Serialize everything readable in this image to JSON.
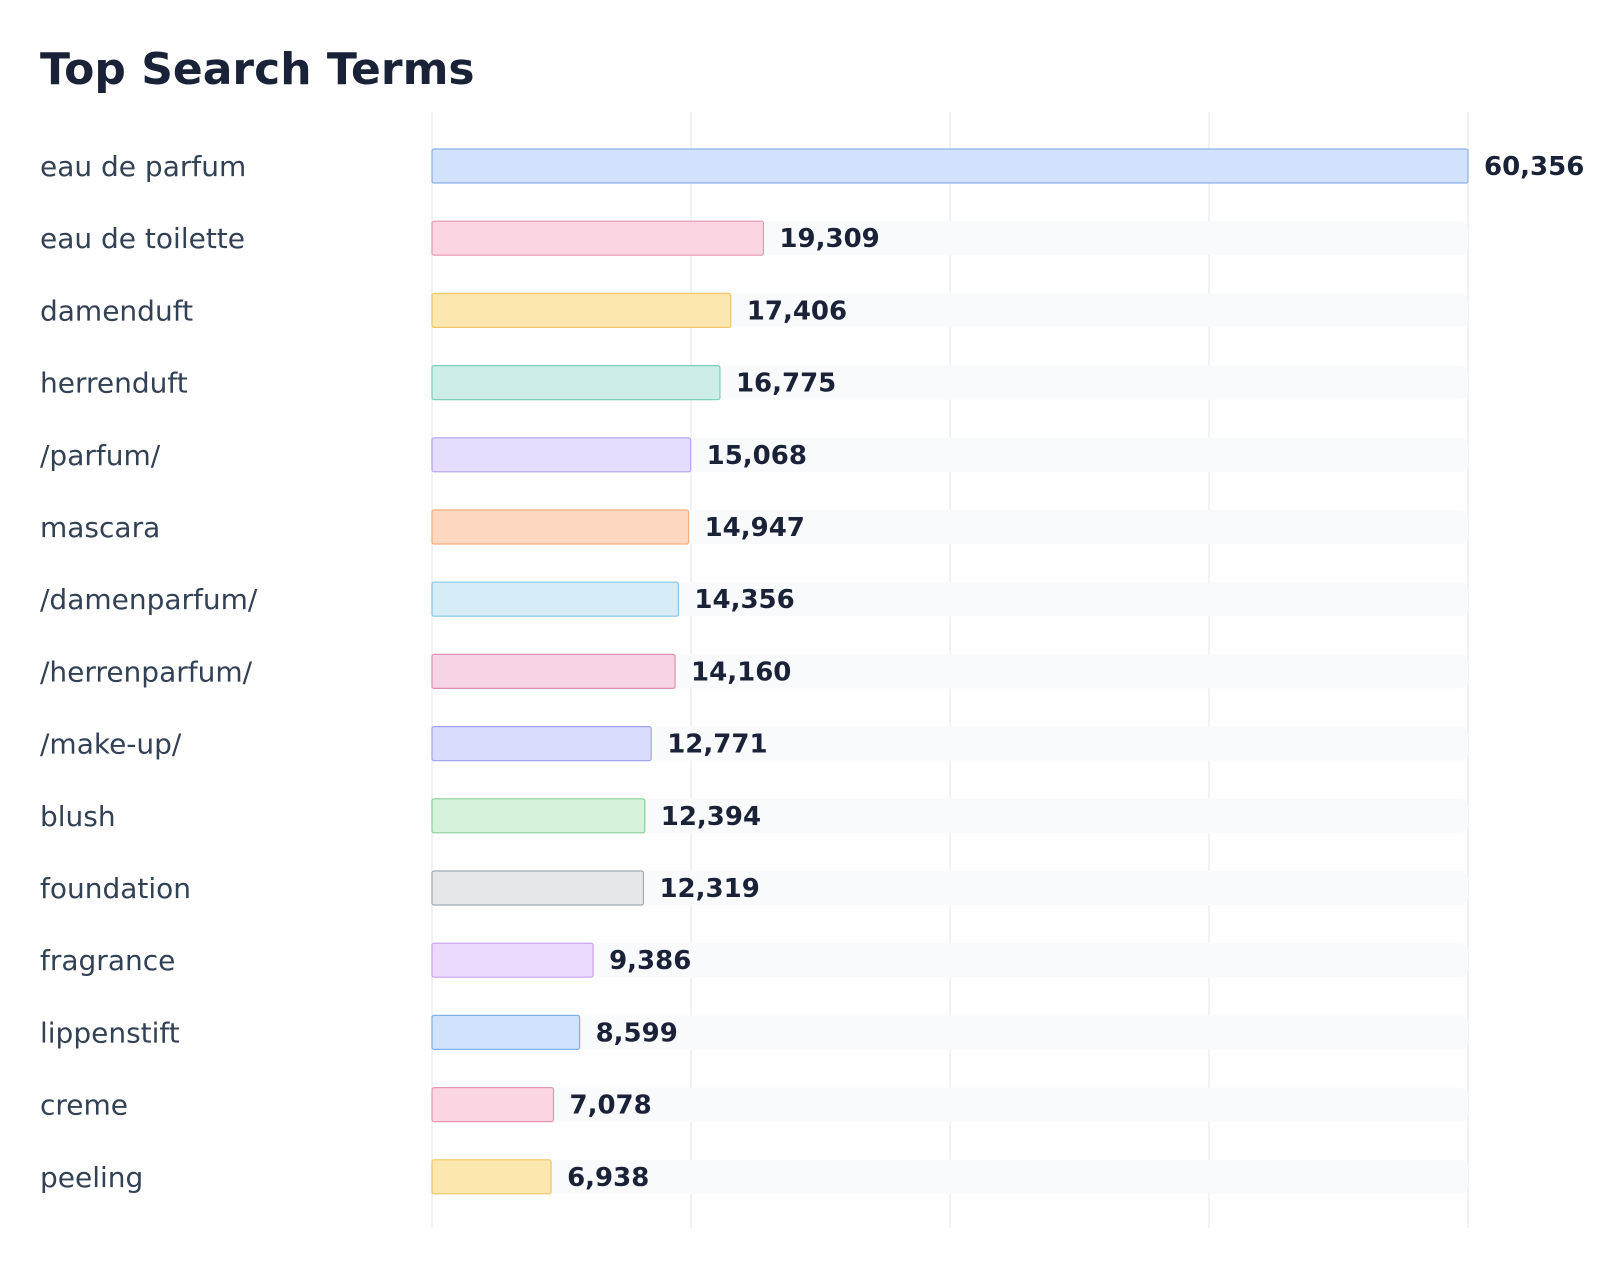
{
  "chart_data": {
    "type": "bar",
    "orientation": "horizontal",
    "title": "Top Search Terms",
    "xlabel": "",
    "ylabel": "",
    "xlim": [
      0,
      60356
    ],
    "grid": true,
    "categories": [
      "eau de parfum",
      "eau de toilette",
      "damenduft",
      "herrenduft",
      "/parfum/",
      "mascara",
      "/damenparfum/",
      "/herrenparfum/",
      "/make-up/",
      "blush",
      "foundation",
      "fragrance",
      "lippenstift",
      "creme",
      "peeling"
    ],
    "values": [
      60356,
      19309,
      17406,
      16775,
      15068,
      14947,
      14356,
      14160,
      12771,
      12394,
      12319,
      9386,
      8599,
      7078,
      6938
    ],
    "value_labels": [
      "60,356",
      "19,309",
      "17,406",
      "16,775",
      "15,068",
      "14,947",
      "14,356",
      "14,160",
      "12,771",
      "12,394",
      "12,319",
      "9,386",
      "8,599",
      "7,078",
      "6,938"
    ],
    "colors": [
      {
        "fill": "#d3e2fd",
        "stroke": "#8fb0ec"
      },
      {
        "fill": "#fbd5e2",
        "stroke": "#e597b2"
      },
      {
        "fill": "#fde7b0",
        "stroke": "#eec768"
      },
      {
        "fill": "#cdeee8",
        "stroke": "#7fcfbd"
      },
      {
        "fill": "#e5ddfe",
        "stroke": "#b5a3f0"
      },
      {
        "fill": "#fed9c2",
        "stroke": "#f2ad82"
      },
      {
        "fill": "#d6edf8",
        "stroke": "#86c6e3"
      },
      {
        "fill": "#f7d3e6",
        "stroke": "#df8fb6"
      },
      {
        "fill": "#dadcfe",
        "stroke": "#a2a6ef"
      },
      {
        "fill": "#d5f2da",
        "stroke": "#89d09a"
      },
      {
        "fill": "#e5e7eb",
        "stroke": "#a5a9b2"
      },
      {
        "fill": "#ecdafe",
        "stroke": "#c8a2ee"
      },
      {
        "fill": "#d1e2fd",
        "stroke": "#84b0e8"
      },
      {
        "fill": "#fbd5e2",
        "stroke": "#e597b2"
      },
      {
        "fill": "#fde7b0",
        "stroke": "#eec768"
      }
    ],
    "track_color": "#f8fafc",
    "grid_color": "#eceef2"
  }
}
